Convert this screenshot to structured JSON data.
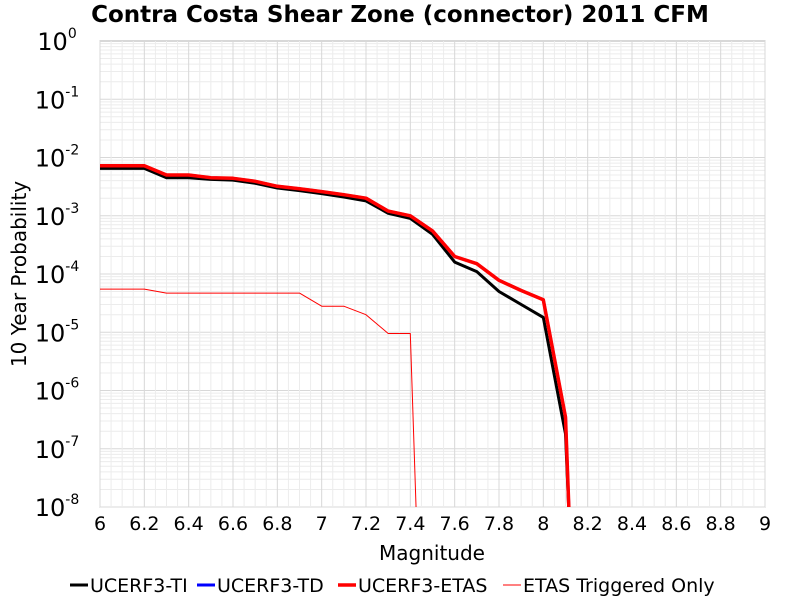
{
  "chart_data": {
    "type": "line",
    "title": "Contra Costa Shear Zone (connector) 2011 CFM",
    "xlabel": "Magnitude",
    "ylabel": "10 Year Probability",
    "xlim": [
      6,
      9
    ],
    "ylim_log10": [
      -8,
      0
    ],
    "yscale": "log",
    "x_ticks": [
      "6",
      "6.2",
      "6.4",
      "6.6",
      "6.8",
      "7",
      "7.2",
      "7.4",
      "7.6",
      "7.8",
      "8",
      "8.2",
      "8.4",
      "8.6",
      "8.8",
      "9"
    ],
    "y_ticks": [
      {
        "base": "10",
        "exp": "0"
      },
      {
        "base": "10",
        "exp": "-1"
      },
      {
        "base": "10",
        "exp": "-2"
      },
      {
        "base": "10",
        "exp": "-3"
      },
      {
        "base": "10",
        "exp": "-4"
      },
      {
        "base": "10",
        "exp": "-5"
      },
      {
        "base": "10",
        "exp": "-6"
      },
      {
        "base": "10",
        "exp": "-7"
      },
      {
        "base": "10",
        "exp": "-8"
      }
    ],
    "grid": true,
    "legend_position": "bottom",
    "series": [
      {
        "name": "UCERF3-TI",
        "color": "#000000",
        "width": 3,
        "points": [
          [
            6.0,
            0.0065
          ],
          [
            6.2,
            0.0065
          ],
          [
            6.3,
            0.0045
          ],
          [
            6.4,
            0.0045
          ],
          [
            6.5,
            0.0042
          ],
          [
            6.6,
            0.0041
          ],
          [
            6.7,
            0.0036
          ],
          [
            6.8,
            0.003
          ],
          [
            6.9,
            0.0027
          ],
          [
            7.0,
            0.0024
          ],
          [
            7.1,
            0.0021
          ],
          [
            7.2,
            0.0018
          ],
          [
            7.3,
            0.0011
          ],
          [
            7.4,
            0.0009
          ],
          [
            7.5,
            0.00048
          ],
          [
            7.6,
            0.00016
          ],
          [
            7.7,
            0.00011
          ],
          [
            7.8,
            5e-05
          ],
          [
            7.9,
            3e-05
          ],
          [
            8.0,
            1.8e-05
          ],
          [
            8.1,
            1.8e-07
          ],
          [
            8.12,
            1e-09
          ]
        ]
      },
      {
        "name": "UCERF3-TD",
        "color": "#0000ff",
        "width": 3,
        "points": [
          [
            6.0,
            0.0072
          ],
          [
            6.2,
            0.0072
          ],
          [
            6.3,
            0.005
          ],
          [
            6.4,
            0.005
          ],
          [
            6.5,
            0.0045
          ],
          [
            6.6,
            0.0044
          ],
          [
            6.7,
            0.0039
          ],
          [
            6.8,
            0.0032
          ],
          [
            6.9,
            0.0029
          ],
          [
            7.0,
            0.0026
          ],
          [
            7.1,
            0.0023
          ],
          [
            7.2,
            0.002
          ],
          [
            7.3,
            0.0012
          ],
          [
            7.4,
            0.001
          ],
          [
            7.5,
            0.00055
          ],
          [
            7.6,
            0.0002
          ],
          [
            7.7,
            0.00015
          ],
          [
            7.8,
            7.8e-05
          ],
          [
            7.9,
            5.2e-05
          ],
          [
            8.0,
            3.6e-05
          ],
          [
            8.1,
            3.5e-07
          ],
          [
            8.12,
            1e-09
          ]
        ]
      },
      {
        "name": "UCERF3-ETAS",
        "color": "#ff0000",
        "width": 3.5,
        "points": [
          [
            6.0,
            0.0072
          ],
          [
            6.2,
            0.0072
          ],
          [
            6.3,
            0.005
          ],
          [
            6.4,
            0.005
          ],
          [
            6.5,
            0.0045
          ],
          [
            6.6,
            0.0044
          ],
          [
            6.7,
            0.0039
          ],
          [
            6.8,
            0.0032
          ],
          [
            6.9,
            0.0029
          ],
          [
            7.0,
            0.0026
          ],
          [
            7.1,
            0.0023
          ],
          [
            7.2,
            0.002
          ],
          [
            7.3,
            0.0012
          ],
          [
            7.4,
            0.001
          ],
          [
            7.5,
            0.00055
          ],
          [
            7.6,
            0.0002
          ],
          [
            7.7,
            0.00015
          ],
          [
            7.8,
            7.8e-05
          ],
          [
            7.9,
            5.2e-05
          ],
          [
            8.0,
            3.6e-05
          ],
          [
            8.1,
            3.5e-07
          ],
          [
            8.12,
            1e-09
          ]
        ]
      },
      {
        "name": "ETAS Triggered Only",
        "color": "#ff0000",
        "width": 1,
        "points": [
          [
            6.0,
            5.5e-05
          ],
          [
            6.2,
            5.5e-05
          ],
          [
            6.3,
            4.7e-05
          ],
          [
            6.4,
            4.7e-05
          ],
          [
            6.5,
            4.7e-05
          ],
          [
            6.6,
            4.7e-05
          ],
          [
            6.7,
            4.7e-05
          ],
          [
            6.8,
            4.7e-05
          ],
          [
            6.9,
            4.7e-05
          ],
          [
            7.0,
            2.8e-05
          ],
          [
            7.1,
            2.8e-05
          ],
          [
            7.2,
            2e-05
          ],
          [
            7.3,
            9.5e-06
          ],
          [
            7.4,
            9.5e-06
          ],
          [
            7.43,
            1e-09
          ]
        ]
      }
    ]
  }
}
